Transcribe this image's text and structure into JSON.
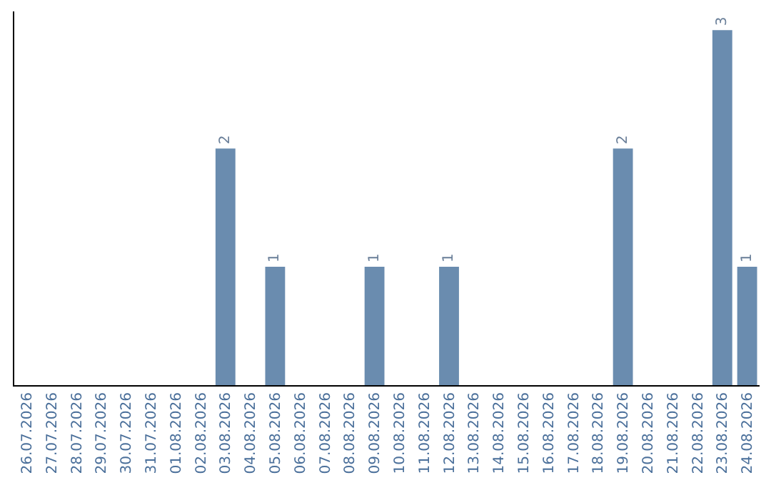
{
  "chart_data": {
    "type": "bar",
    "categories": [
      "26.07.2026",
      "27.07.2026",
      "28.07.2026",
      "29.07.2026",
      "30.07.2026",
      "31.07.2026",
      "01.08.2026",
      "02.08.2026",
      "03.08.2026",
      "04.08.2026",
      "05.08.2026",
      "06.08.2026",
      "07.08.2026",
      "08.08.2026",
      "09.08.2026",
      "10.08.2026",
      "11.08.2026",
      "12.08.2026",
      "13.08.2026",
      "14.08.2026",
      "15.08.2026",
      "16.08.2026",
      "17.08.2026",
      "18.08.2026",
      "19.08.2026",
      "20.08.2026",
      "21.08.2026",
      "22.08.2026",
      "23.08.2026",
      "24.08.2026"
    ],
    "values": [
      0,
      0,
      0,
      0,
      0,
      0,
      0,
      0,
      2,
      0,
      1,
      0,
      0,
      0,
      1,
      0,
      0,
      1,
      0,
      0,
      0,
      0,
      0,
      0,
      2,
      0,
      0,
      0,
      3,
      1
    ],
    "value_labels": [
      null,
      null,
      null,
      null,
      null,
      null,
      null,
      null,
      "2",
      null,
      "1",
      null,
      null,
      null,
      "1",
      null,
      null,
      "1",
      null,
      null,
      null,
      null,
      null,
      null,
      "2",
      null,
      null,
      null,
      "3",
      "1"
    ],
    "color": "#6a8caf",
    "grid": false,
    "legend": false,
    "tick_labels": "x"
  }
}
